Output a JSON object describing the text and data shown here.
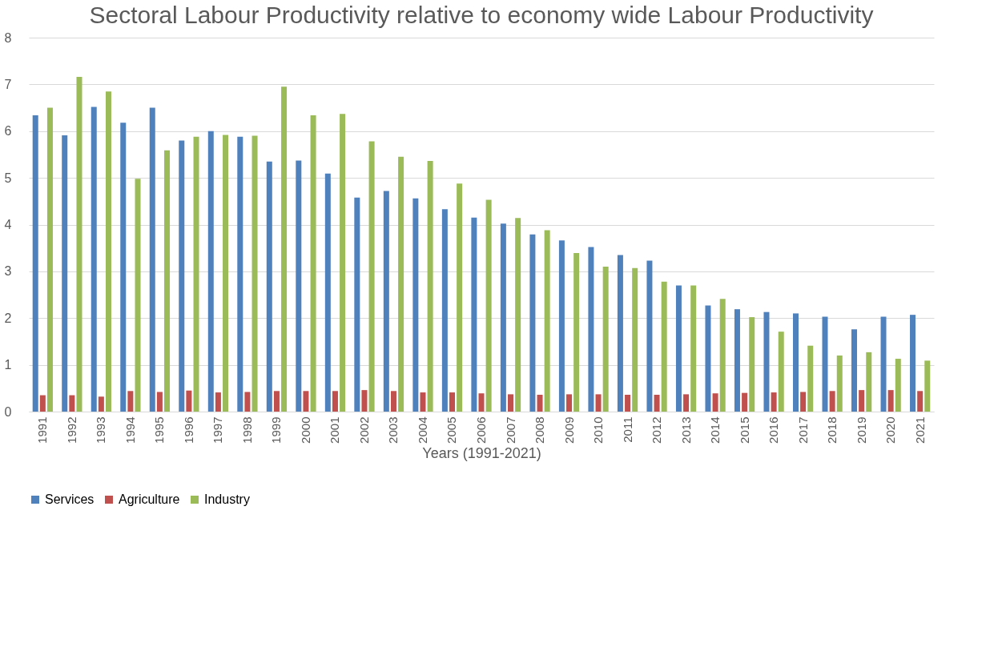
{
  "chart_data": {
    "type": "bar",
    "title": "Sectoral Labour Productivity relative to economy wide Labour Productivity",
    "xlabel": "Years (1991-2021)",
    "categories": [
      "1991",
      "1992",
      "1993",
      "1994",
      "1995",
      "1996",
      "1997",
      "1998",
      "1999",
      "2000",
      "2001",
      "2002",
      "2003",
      "2004",
      "2005",
      "2006",
      "2007",
      "2008",
      "2009",
      "2010",
      "2011",
      "2012",
      "2013",
      "2014",
      "2015",
      "2016",
      "2017",
      "2018",
      "2019",
      "2020",
      "2021"
    ],
    "series": [
      {
        "name": "Services",
        "color": "#4f81bd",
        "values": [
          6.34,
          5.91,
          6.52,
          6.18,
          6.5,
          5.8,
          6.0,
          5.88,
          5.35,
          5.37,
          5.09,
          4.58,
          4.72,
          4.56,
          4.33,
          4.15,
          4.02,
          3.79,
          3.66,
          3.52,
          3.35,
          3.23,
          2.7,
          2.27,
          2.19,
          2.13,
          2.1,
          2.03,
          1.76,
          2.03,
          2.07
        ]
      },
      {
        "name": "Agriculture",
        "color": "#c0504d",
        "values": [
          0.35,
          0.35,
          0.32,
          0.44,
          0.42,
          0.45,
          0.41,
          0.42,
          0.44,
          0.44,
          0.44,
          0.46,
          0.44,
          0.41,
          0.41,
          0.39,
          0.37,
          0.36,
          0.37,
          0.37,
          0.36,
          0.36,
          0.37,
          0.39,
          0.4,
          0.41,
          0.42,
          0.44,
          0.46,
          0.46,
          0.44
        ]
      },
      {
        "name": "Industry",
        "color": "#9bbb59",
        "values": [
          6.5,
          7.16,
          6.85,
          4.98,
          5.59,
          5.88,
          5.92,
          5.9,
          6.95,
          6.34,
          6.37,
          5.78,
          5.45,
          5.36,
          4.88,
          4.53,
          4.14,
          3.88,
          3.39,
          3.1,
          3.07,
          2.78,
          2.7,
          2.41,
          2.02,
          1.71,
          1.41,
          1.2,
          1.27,
          1.13,
          1.09
        ]
      }
    ],
    "ylim": [
      0,
      8
    ],
    "yticks": [
      0,
      1,
      2,
      3,
      4,
      5,
      6,
      7,
      8
    ],
    "grid": "y",
    "legend": "bottom"
  }
}
